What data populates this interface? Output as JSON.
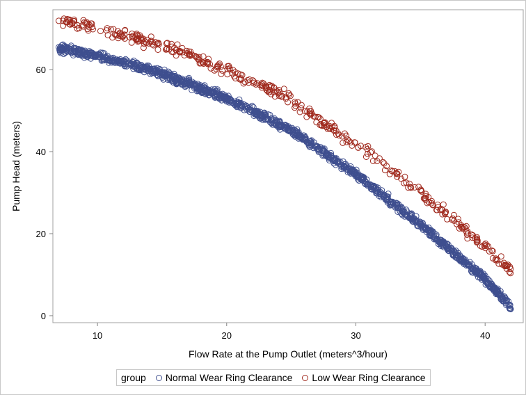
{
  "chart_data": {
    "type": "scatter",
    "xlabel": "Flow Rate at the Pump Outlet (meters^3/hour)",
    "ylabel": "Pump Head (meters)",
    "xlim": [
      6.55,
      42.95
    ],
    "ylim": [
      -1.7,
      74.6
    ],
    "xticks": [
      10,
      20,
      30,
      40
    ],
    "yticks": [
      0,
      20,
      40,
      60
    ],
    "grid": false,
    "legend": {
      "title": "group",
      "placement": "bottom"
    },
    "series": [
      {
        "name": "Normal Wear Ring Clearance",
        "color": "#3f4f8f",
        "x_range": [
          7,
          42
        ],
        "noise": 0.7,
        "count": 1400,
        "trend": [
          [
            7,
            65.2
          ],
          [
            10,
            63.4
          ],
          [
            15,
            59
          ],
          [
            20,
            53
          ],
          [
            25,
            45.2
          ],
          [
            30,
            34.5
          ],
          [
            35,
            22.3
          ],
          [
            40,
            9
          ],
          [
            42,
            2
          ]
        ]
      },
      {
        "name": "Low Wear Ring Clearance",
        "color": "#a02a1e",
        "x_range": [
          7,
          42
        ],
        "noise": 1.0,
        "count": 420,
        "trend": [
          [
            7,
            72
          ],
          [
            10,
            70
          ],
          [
            15,
            66
          ],
          [
            20,
            60
          ],
          [
            25,
            52.5
          ],
          [
            30,
            41.5
          ],
          [
            35,
            30
          ],
          [
            40,
            17
          ],
          [
            42,
            11
          ]
        ]
      }
    ]
  }
}
